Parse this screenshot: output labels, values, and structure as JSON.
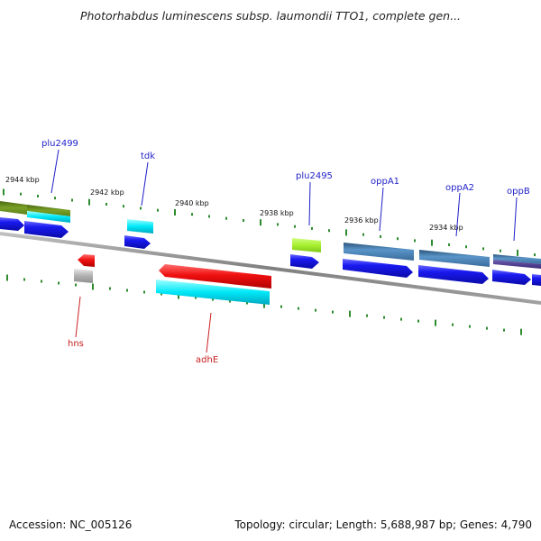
{
  "title": "Photorhabdus luminescens subsp. laumondii TTO1, complete gen...",
  "footer": {
    "accession": "Accession: NC_005126",
    "summary": "Topology: circular; Length: 5,688,987 bp; Genes: 4,790"
  },
  "colors": {
    "background": "#ffffff",
    "backbone": "#8c8c8c",
    "tick": "#2e8b2e",
    "forward_label": "#1f1fc8",
    "reverse_label": "#c81e1e",
    "cds_blue": "#1010e0",
    "cyan": "#00e0f0",
    "steel_blue": "#4a82b8",
    "olive": "#6e9a1e",
    "lime": "#a8f030",
    "red": "#ee1010",
    "gray": "#b8b8b8",
    "navy": "#4a3a8a"
  },
  "scale_labels": [
    "2944 kbp",
    "2942 kbp",
    "2940 kbp",
    "2938 kbp",
    "2936 kbp",
    "2934 kbp"
  ],
  "forward_genes": [
    "plu2499",
    "tdk",
    "plu2495",
    "oppA1",
    "oppA2",
    "oppB"
  ],
  "reverse_genes": [
    "hns",
    "adhE"
  ]
}
